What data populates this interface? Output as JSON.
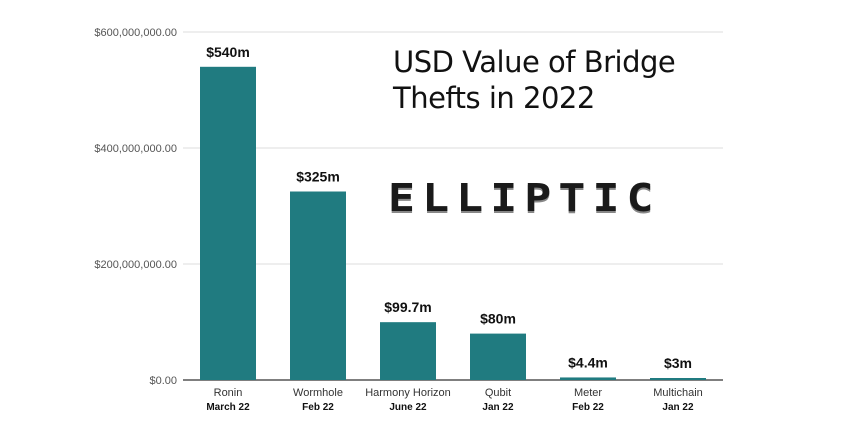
{
  "chart_data": {
    "type": "bar",
    "title": "USD Value of Bridge Thefts in 2022",
    "categories": [
      "Ronin",
      "Wormhole",
      "Harmony Horizon",
      "Qubit",
      "Meter",
      "Multichain"
    ],
    "dates": [
      "March 22",
      "Feb 22",
      "June 22",
      "Jan 22",
      "Feb 22",
      "Jan 22"
    ],
    "values": [
      540000000,
      325000000,
      99700000,
      80000000,
      4400000,
      3000000
    ],
    "value_labels": [
      "$540m",
      "$325m",
      "$99.7m",
      "$80m",
      "$4.4m",
      "$3m"
    ],
    "y_ticks": [
      {
        "value": 0,
        "label": "$0.00"
      },
      {
        "value": 200000000,
        "label": "$200,000,000.00"
      },
      {
        "value": 400000000,
        "label": "$400,000,000.00"
      },
      {
        "value": 600000000,
        "label": "$600,000,000.00"
      }
    ],
    "ylim": [
      0,
      600000000
    ],
    "grid": true,
    "bar_color": "#207b80",
    "xlabel": "",
    "ylabel": ""
  },
  "logo_text": "ELLIPTIC"
}
